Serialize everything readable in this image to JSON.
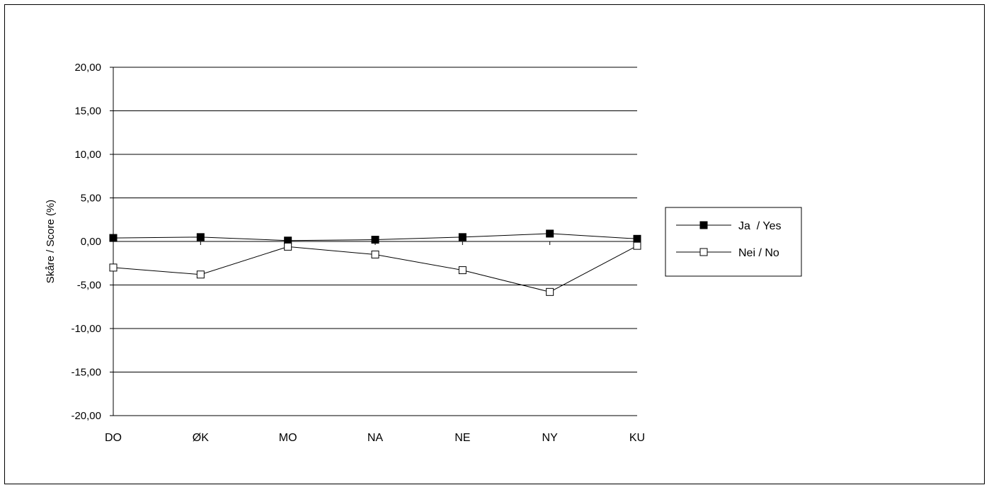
{
  "chart_data": {
    "type": "line",
    "title": "",
    "xlabel": "",
    "ylabel": "Skåre / Score (%)",
    "categories": [
      "DO",
      "ØK",
      "MO",
      "NA",
      "NE",
      "NY",
      "KU"
    ],
    "y_ticks": [
      "20,00",
      "15,00",
      "10,00",
      "5,00",
      "0,00",
      "-5,00",
      "-10,00",
      "-15,00",
      "-20,00"
    ],
    "ylim": [
      -20,
      20
    ],
    "grid": true,
    "legend_position": "right",
    "series": [
      {
        "name": "Ja  / Yes",
        "marker": "filled-square",
        "color": "#000000",
        "values": [
          0.4,
          0.5,
          0.1,
          0.2,
          0.5,
          0.9,
          0.3
        ]
      },
      {
        "name": "Nei / No",
        "marker": "open-square",
        "color": "#000000",
        "values": [
          -3.0,
          -3.8,
          -0.6,
          -1.5,
          -3.3,
          -5.8,
          -0.5
        ]
      }
    ]
  }
}
